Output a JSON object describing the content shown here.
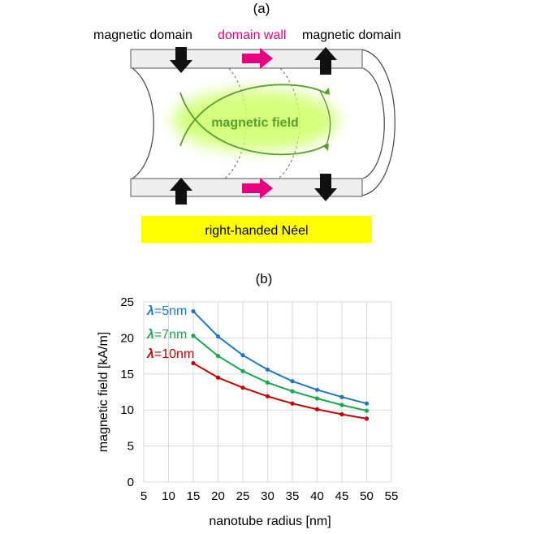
{
  "panel_a": {
    "label": "(a)",
    "left_domain_label": "magnetic domain",
    "wall_label": "domain wall",
    "right_domain_label": "magnetic domain",
    "field_label": "magnetic field",
    "banner_label": "right-handed Néel",
    "colors": {
      "wall": "#e6007e",
      "field": "#5a9e2f",
      "banner": "#ffff00",
      "glow": "#ccff66"
    }
  },
  "panel_b": {
    "label": "(b)",
    "chart_data": {
      "type": "line",
      "xlabel": "nanotube radius [nm]",
      "ylabel": "magnetic field [kA/m]",
      "xlim": [
        5,
        55
      ],
      "ylim": [
        0,
        25
      ],
      "xticks": [
        5,
        10,
        15,
        20,
        25,
        30,
        35,
        40,
        45,
        50,
        55
      ],
      "yticks": [
        0,
        5,
        10,
        15,
        20,
        25
      ],
      "grid": true,
      "series": [
        {
          "name": "λ=5nm",
          "label_prefix": "λ",
          "label_suffix": "=5nm",
          "color": "#1f77c4",
          "x": [
            15,
            20,
            25,
            30,
            35,
            40,
            45,
            50
          ],
          "y": [
            23.7,
            20.2,
            17.6,
            15.6,
            14.0,
            12.8,
            11.8,
            10.9
          ]
        },
        {
          "name": "λ=7nm",
          "label_prefix": "λ",
          "label_suffix": "=7nm",
          "color": "#1aa84f",
          "x": [
            15,
            20,
            25,
            30,
            35,
            40,
            45,
            50
          ],
          "y": [
            20.3,
            17.5,
            15.4,
            13.8,
            12.6,
            11.6,
            10.7,
            9.9
          ]
        },
        {
          "name": "λ=10nm",
          "label_prefix": "λ",
          "label_suffix": "=10nm",
          "color": "#c00000",
          "x": [
            15,
            20,
            25,
            30,
            35,
            40,
            45,
            50
          ],
          "y": [
            16.5,
            14.5,
            13.1,
            11.9,
            10.9,
            10.1,
            9.4,
            8.8
          ]
        }
      ]
    }
  }
}
